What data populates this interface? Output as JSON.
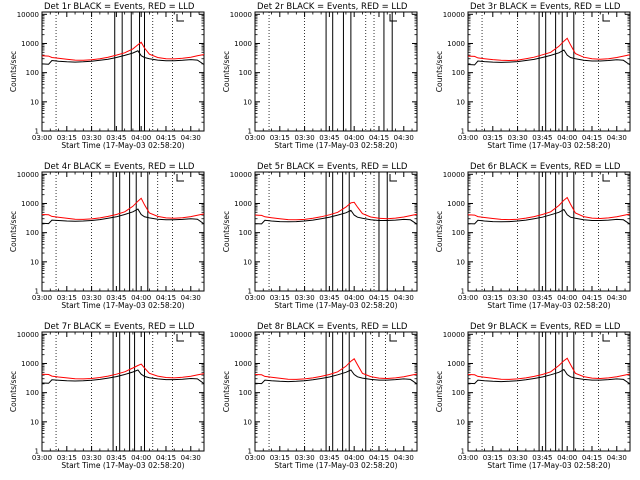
{
  "chart_data": {
    "type": "line",
    "time_ticks": [
      "03:00",
      "03:15",
      "03:30",
      "03:45",
      "04:00",
      "04:15",
      "04:30"
    ],
    "time_tick_minutes_after_0300": [
      0,
      15,
      30,
      45,
      60,
      75,
      90
    ],
    "time_range_minutes_after_0300": [
      0,
      98
    ],
    "x_values_minutes_after_0300": [
      0,
      4,
      6,
      10,
      15,
      20,
      25,
      30,
      35,
      40,
      45,
      50,
      55,
      58,
      60,
      62,
      65,
      70,
      75,
      80,
      85,
      90,
      94,
      98
    ],
    "xlabel": "Start Time (17-May-03 02:58:20)",
    "ylabel": "Counts/sec",
    "yscale": "log",
    "ylim": [
      1,
      12000
    ],
    "y_ticks": [
      "1",
      "10",
      "100",
      "1000",
      "10000"
    ],
    "y_tick_values": [
      1,
      10,
      100,
      1000,
      10000
    ],
    "colors": {
      "events": "#000000",
      "lld": "#ff0000",
      "axes": "#000000"
    },
    "panels": [
      {
        "title": "Det 1r BLACK = Events, RED = LLD",
        "has_data": true,
        "events": [
          200,
          195,
          260,
          245,
          235,
          230,
          235,
          245,
          265,
          290,
          330,
          390,
          470,
          560,
          380,
          330,
          300,
          270,
          255,
          255,
          265,
          280,
          270,
          190
        ],
        "lld": [
          380,
          370,
          330,
          310,
          290,
          270,
          265,
          275,
          300,
          340,
          400,
          480,
          650,
          900,
          1100,
          700,
          430,
          330,
          300,
          295,
          310,
          340,
          380,
          420
        ],
        "solid_lines": [
          44,
          48.5,
          54,
          59,
          62
        ],
        "dotted_lines": [
          8.5,
          30,
          67,
          79
        ],
        "legend_bracket": true
      },
      {
        "title": "Det 2r BLACK = Events, RED = LLD",
        "has_data": false,
        "events": [],
        "lld": [],
        "solid_lines": [
          43,
          47,
          53.5,
          58,
          78,
          83
        ],
        "dotted_lines": [
          8.5,
          30,
          67,
          72
        ],
        "legend_bracket": true
      },
      {
        "title": "Det 3r BLACK = Events, RED = LLD",
        "has_data": true,
        "events": [
          190,
          185,
          250,
          240,
          230,
          225,
          230,
          240,
          260,
          285,
          330,
          390,
          480,
          600,
          400,
          330,
          300,
          265,
          250,
          250,
          260,
          275,
          265,
          185
        ],
        "lld": [
          370,
          360,
          320,
          300,
          280,
          265,
          260,
          270,
          300,
          340,
          410,
          500,
          800,
          1200,
          1500,
          900,
          450,
          340,
          300,
          290,
          300,
          330,
          370,
          410
        ],
        "solid_lines": [
          43,
          47,
          53,
          57,
          64
        ],
        "dotted_lines": [
          8.5,
          30,
          70,
          79
        ],
        "legend_bracket": true
      },
      {
        "title": "Det 4r BLACK = Events, RED = LLD",
        "has_data": true,
        "events": [
          210,
          205,
          270,
          260,
          250,
          245,
          250,
          260,
          280,
          310,
          350,
          420,
          520,
          640,
          420,
          350,
          320,
          290,
          275,
          275,
          285,
          300,
          290,
          200
        ],
        "lld": [
          420,
          410,
          360,
          335,
          310,
          290,
          285,
          295,
          320,
          360,
          420,
          520,
          800,
          1200,
          1500,
          900,
          470,
          360,
          320,
          310,
          325,
          355,
          395,
          440
        ],
        "solid_lines": [
          43,
          47,
          53,
          57,
          64
        ],
        "dotted_lines": [
          8.5,
          30,
          70,
          79
        ],
        "legend_bracket": true
      },
      {
        "title": "Det 5r BLACK = Events, RED = LLD",
        "has_data": true,
        "events": [
          205,
          200,
          265,
          250,
          240,
          235,
          240,
          250,
          270,
          300,
          340,
          400,
          480,
          580,
          400,
          340,
          310,
          275,
          260,
          260,
          270,
          285,
          275,
          195
        ],
        "lld": [
          400,
          390,
          350,
          325,
          300,
          280,
          275,
          285,
          310,
          350,
          410,
          500,
          750,
          1050,
          1100,
          750,
          450,
          345,
          310,
          300,
          315,
          345,
          385,
          430
        ],
        "solid_lines": [
          43,
          47,
          53,
          57,
          75,
          80
        ],
        "dotted_lines": [
          8.5,
          30,
          67,
          72
        ],
        "legend_bracket": true
      },
      {
        "title": "Det 6r BLACK = Events, RED = LLD",
        "has_data": true,
        "events": [
          205,
          200,
          265,
          250,
          240,
          235,
          240,
          250,
          270,
          300,
          340,
          410,
          500,
          620,
          410,
          340,
          310,
          275,
          260,
          260,
          270,
          285,
          275,
          195
        ],
        "lld": [
          410,
          400,
          355,
          330,
          305,
          285,
          280,
          290,
          315,
          355,
          420,
          520,
          850,
          1300,
          1600,
          950,
          470,
          355,
          315,
          305,
          320,
          350,
          390,
          435
        ],
        "solid_lines": [
          43,
          47,
          53,
          57,
          64
        ],
        "dotted_lines": [
          8.5,
          30,
          70,
          79
        ],
        "legend_bracket": true
      },
      {
        "title": "Det 7r BLACK = Events, RED = LLD",
        "has_data": true,
        "events": [
          215,
          210,
          275,
          265,
          255,
          250,
          255,
          265,
          285,
          315,
          355,
          420,
          510,
          600,
          430,
          360,
          325,
          295,
          280,
          280,
          290,
          305,
          295,
          205
        ],
        "lld": [
          430,
          420,
          370,
          345,
          320,
          300,
          295,
          305,
          330,
          370,
          430,
          520,
          700,
          850,
          950,
          700,
          460,
          370,
          330,
          320,
          335,
          365,
          405,
          450
        ],
        "solid_lines": [
          43,
          47,
          53,
          56,
          62
        ],
        "dotted_lines": [
          8.5,
          30,
          67,
          79
        ],
        "legend_bracket": true
      },
      {
        "title": "Det 8r BLACK = Events, RED = LLD",
        "has_data": true,
        "events": [
          210,
          205,
          270,
          255,
          245,
          240,
          245,
          255,
          275,
          305,
          345,
          410,
          500,
          600,
          420,
          350,
          315,
          285,
          270,
          270,
          280,
          295,
          285,
          200
        ],
        "lld": [
          420,
          410,
          360,
          335,
          310,
          290,
          285,
          295,
          320,
          360,
          420,
          520,
          800,
          1200,
          1450,
          900,
          460,
          355,
          315,
          305,
          320,
          350,
          390,
          435
        ],
        "solid_lines": [
          43,
          47,
          53,
          57,
          67
        ],
        "dotted_lines": [
          8.5,
          30,
          71,
          79
        ],
        "legend_bracket": true
      },
      {
        "title": "Det 9r BLACK = Events, RED = LLD",
        "has_data": true,
        "events": [
          210,
          205,
          270,
          255,
          245,
          240,
          245,
          255,
          275,
          305,
          345,
          410,
          500,
          620,
          420,
          350,
          315,
          285,
          270,
          270,
          280,
          295,
          285,
          200
        ],
        "lld": [
          420,
          410,
          360,
          335,
          310,
          290,
          285,
          295,
          320,
          360,
          420,
          520,
          850,
          1250,
          1500,
          920,
          460,
          355,
          315,
          305,
          320,
          350,
          390,
          435
        ],
        "solid_lines": [
          43,
          47,
          53,
          57,
          64
        ],
        "dotted_lines": [
          8.5,
          30,
          70,
          79
        ],
        "legend_bracket": true
      }
    ]
  }
}
